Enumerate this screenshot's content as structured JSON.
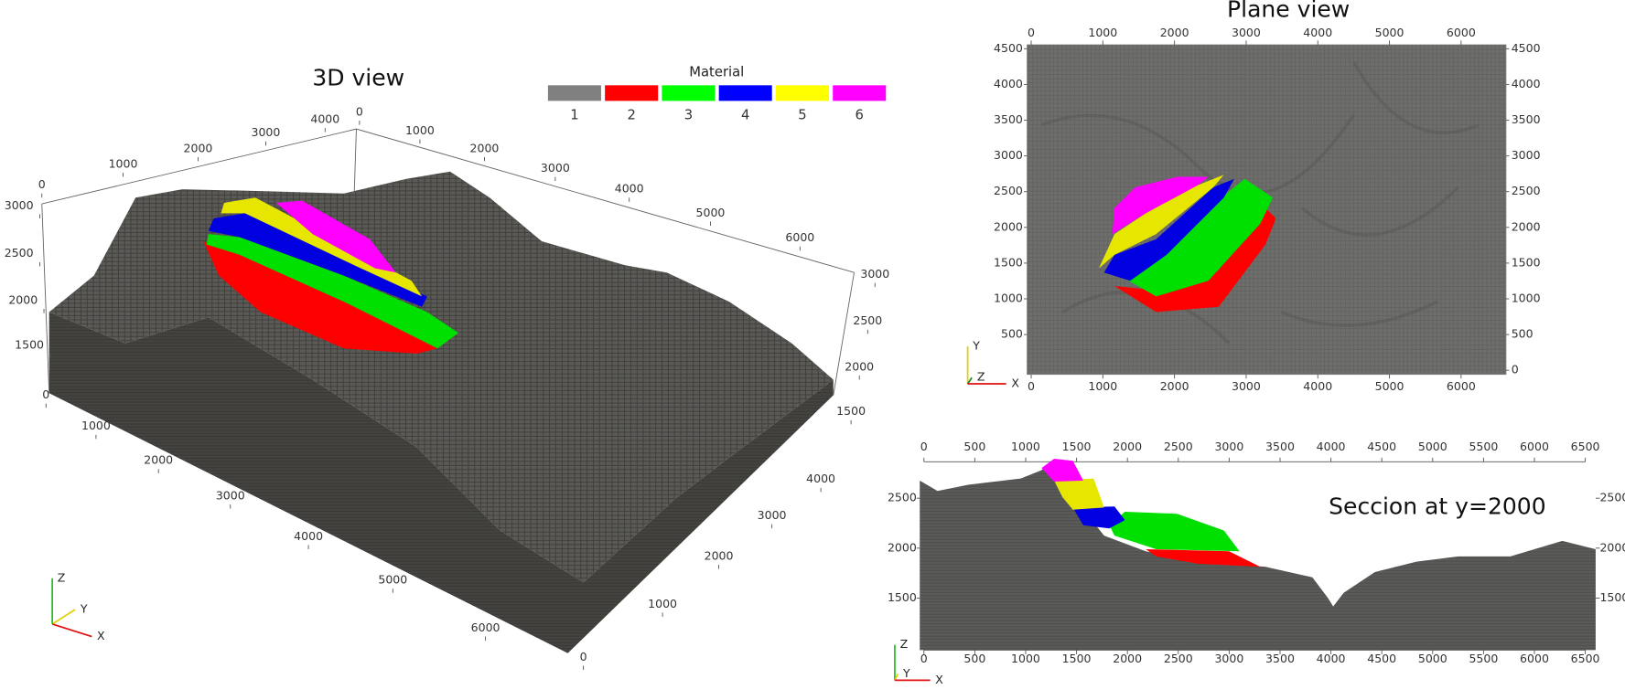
{
  "legend": {
    "title": "Material",
    "items": [
      {
        "label": "1",
        "color": "#808080"
      },
      {
        "label": "2",
        "color": "#ff0000"
      },
      {
        "label": "3",
        "color": "#00ff00"
      },
      {
        "label": "4",
        "color": "#0000ff"
      },
      {
        "label": "5",
        "color": "#ffff00"
      },
      {
        "label": "6",
        "color": "#ff00ff"
      }
    ]
  },
  "views": [
    {
      "title": "3D view",
      "triad": [
        "Z",
        "Y",
        "X"
      ],
      "axes": [
        {
          "ticks": [
            0,
            1000,
            2000,
            3000,
            4000
          ]
        },
        {
          "ticks": [
            0,
            1000,
            2000,
            3000,
            4000,
            5000,
            6000
          ]
        },
        {
          "ticks": [
            3000,
            2500,
            2000,
            1500
          ]
        },
        {
          "ticks": [
            3000,
            2500,
            2000,
            1500
          ]
        },
        {
          "ticks": [
            0,
            1000,
            2000,
            3000,
            4000,
            5000,
            6000
          ]
        },
        {
          "ticks": [
            4000,
            3000,
            2000,
            1000,
            0
          ]
        }
      ]
    },
    {
      "title": "Plane view",
      "triad": [
        "Y",
        "Z",
        "X"
      ],
      "axes": [
        {
          "ticks": [
            0,
            1000,
            2000,
            3000,
            4000,
            5000,
            6000
          ]
        },
        {
          "ticks": [
            0,
            1000,
            2000,
            3000,
            4000,
            5000,
            6000
          ]
        },
        {
          "ticks": [
            4500,
            4000,
            3500,
            3000,
            2500,
            2000,
            1500,
            1000,
            500
          ]
        },
        {
          "ticks": [
            4500,
            4000,
            3500,
            3000,
            2500,
            2000,
            1500,
            1000,
            500,
            0
          ]
        }
      ]
    },
    {
      "title": "Seccion at y=2000",
      "triad": [
        "Z",
        "Y",
        "X"
      ],
      "axes": [
        {
          "ticks": [
            0,
            500,
            1000,
            1500,
            2000,
            2500,
            3000,
            3500,
            4000,
            4500,
            5000,
            5500,
            6000,
            6500
          ]
        },
        {
          "ticks": [
            0,
            500,
            1000,
            1500,
            2000,
            2500,
            3000,
            3500,
            4000,
            4500,
            5000,
            5500,
            6000,
            6500
          ]
        },
        {
          "ticks": [
            2500,
            2000,
            1500
          ]
        },
        {
          "ticks": [
            2500,
            2000,
            1500
          ]
        }
      ]
    }
  ]
}
